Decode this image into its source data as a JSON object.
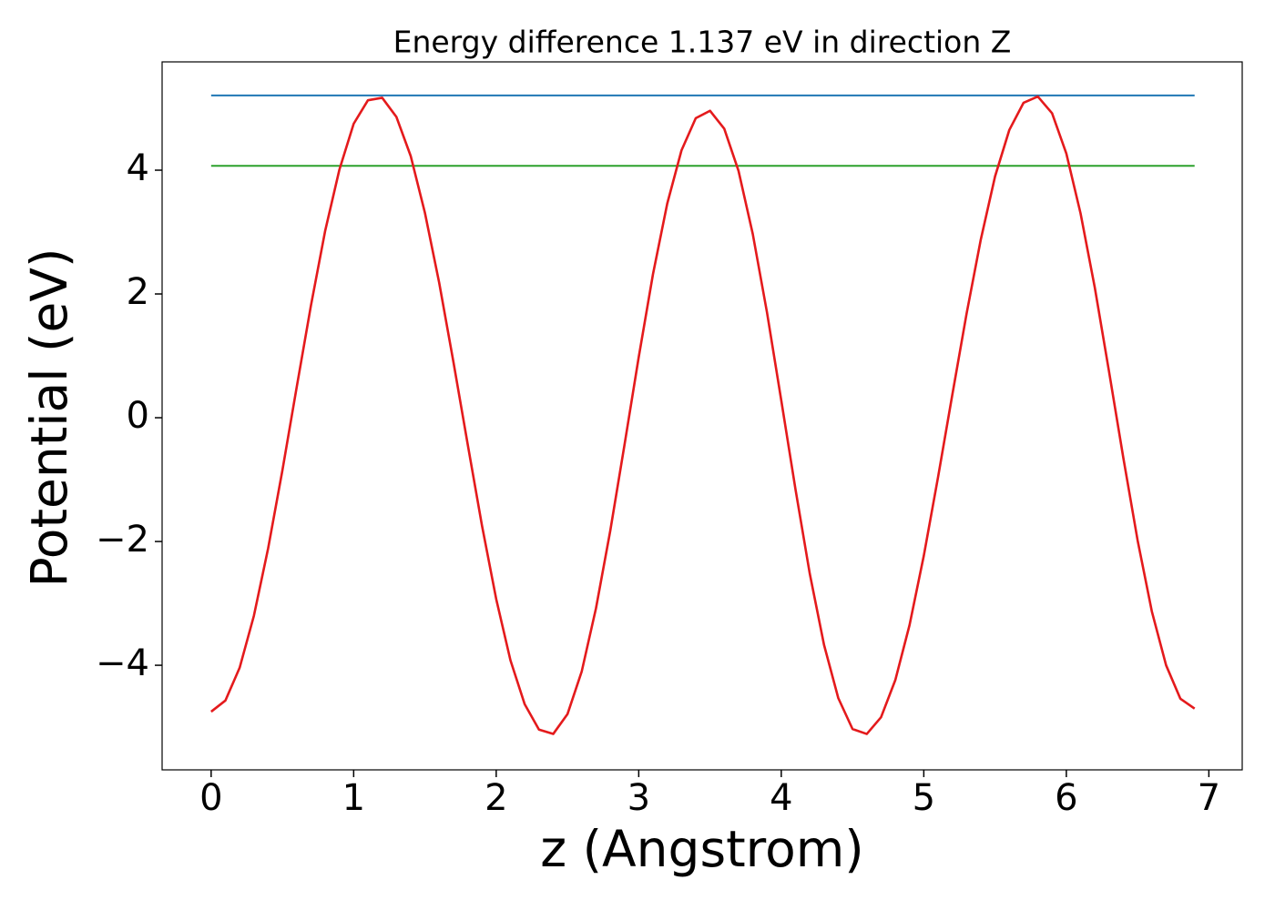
{
  "chart_data": {
    "type": "line",
    "title": "Energy difference 1.137 eV in direction Z",
    "xlabel": "z (Angstrom)",
    "ylabel": "Potential (eV)",
    "xlim": [
      -0.344,
      7.234
    ],
    "ylim": [
      -5.69,
      5.75
    ],
    "xticks": [
      0,
      1,
      2,
      3,
      4,
      5,
      6,
      7
    ],
    "yticks": [
      {
        "value": -4,
        "label": "−4"
      },
      {
        "value": -2,
        "label": "−2"
      },
      0,
      2,
      4
    ],
    "grid": false,
    "series": [
      {
        "color": "#1f77b4",
        "x": [
          0,
          6.9
        ],
        "values": [
          5.207,
          5.207
        ]
      },
      {
        "color": "#2ca02c",
        "x": [
          0,
          6.9
        ],
        "values": [
          4.07,
          4.07
        ]
      },
      {
        "color": "#e41a1c",
        "x": [
          0,
          0.1,
          0.2,
          0.3,
          0.4,
          0.5,
          0.6,
          0.7,
          0.8,
          0.9,
          1.0,
          1.1,
          1.2,
          1.3,
          1.4,
          1.5,
          1.6,
          1.7,
          1.8,
          1.9,
          2.0,
          2.1,
          2.2,
          2.3,
          2.4,
          2.5,
          2.6,
          2.7,
          2.8,
          2.9,
          3.0,
          3.1,
          3.2,
          3.3,
          3.4,
          3.5,
          3.6,
          3.7,
          3.8,
          3.9,
          4.0,
          4.1,
          4.2,
          4.3,
          4.4,
          4.5,
          4.6,
          4.7,
          4.8,
          4.9,
          5.0,
          5.1,
          5.2,
          5.3,
          5.4,
          5.5,
          5.6,
          5.7,
          5.8,
          5.9,
          6.0,
          6.1,
          6.2,
          6.3,
          6.4,
          6.5,
          6.6,
          6.7,
          6.8,
          6.9
        ],
        "values": [
          -4.75,
          -4.57,
          -4.04,
          -3.2,
          -2.11,
          -0.85,
          0.49,
          1.81,
          3.02,
          4.01,
          4.75,
          5.13,
          5.17,
          4.86,
          4.23,
          3.31,
          2.18,
          0.9,
          -0.43,
          -1.74,
          -2.93,
          -3.92,
          -4.63,
          -5.04,
          -5.11,
          -4.79,
          -4.1,
          -3.08,
          -1.83,
          -0.44,
          0.98,
          2.32,
          3.46,
          4.32,
          4.84,
          4.96,
          4.67,
          3.99,
          2.97,
          1.7,
          0.28,
          -1.16,
          -2.52,
          -3.67,
          -4.53,
          -5.03,
          -5.11,
          -4.84,
          -4.24,
          -3.35,
          -2.23,
          -0.96,
          0.37,
          1.68,
          2.88,
          3.9,
          4.65,
          5.09,
          5.19,
          4.92,
          4.27,
          3.3,
          2.1,
          0.74,
          -0.65,
          -1.98,
          -3.13,
          -4.0,
          -4.54,
          -4.7
        ]
      }
    ]
  }
}
